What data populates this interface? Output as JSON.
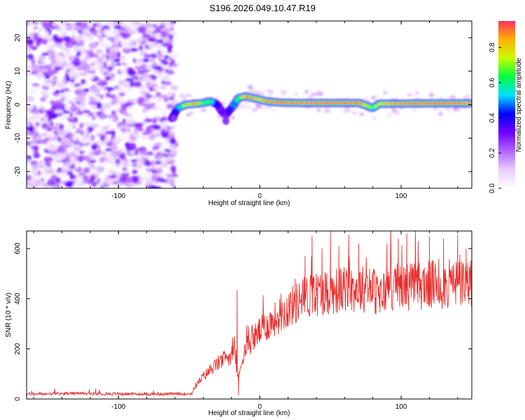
{
  "title": "S196.2026.049.10.47.R19",
  "chart_data": [
    {
      "type": "heatmap",
      "name": "spectrogram",
      "xlabel": "Height of straight line (km)",
      "ylabel": "Frequency (Hz)",
      "xlim": [
        -165,
        150
      ],
      "ylim": [
        -25,
        25
      ],
      "xticks": [
        -100,
        0,
        100
      ],
      "yticks": [
        -20,
        -10,
        0,
        10,
        20
      ],
      "noise_region_x": [
        -165,
        -60
      ],
      "ridge": {
        "x": [
          -62,
          -58,
          -52,
          -45,
          -40,
          -35,
          -30,
          -27,
          -24,
          -20,
          -15,
          -10,
          -5,
          0,
          5,
          15,
          30,
          50,
          70,
          80,
          85,
          100,
          120,
          140,
          148
        ],
        "freq": [
          -4,
          -1,
          0,
          0.3,
          0.5,
          1,
          0,
          -2,
          -3,
          -1,
          2,
          2.5,
          2,
          1.5,
          1,
          0.6,
          0.5,
          0.5,
          0.5,
          -1,
          0.3,
          0.3,
          0.4,
          0.4,
          0.4
        ],
        "amplitude": [
          0.3,
          0.45,
          0.75,
          0.85,
          0.6,
          0.6,
          0.35,
          0.3,
          0.3,
          0.4,
          0.6,
          0.9,
          0.85,
          0.75,
          0.9,
          0.95,
          0.9,
          0.95,
          0.9,
          0.6,
          0.75,
          0.9,
          0.95,
          0.9,
          0.85
        ]
      }
    },
    {
      "type": "colorbar",
      "name": "amplitude-colorbar",
      "label": "Normalized spectral amplitude",
      "range": [
        0,
        0.95
      ],
      "ticks": [
        0.0,
        0.2,
        0.4,
        0.6,
        0.8
      ],
      "tick_labels": [
        "0.0",
        "0.2",
        "0.4",
        "0.6",
        "0.8"
      ],
      "colors": [
        "#ffffff",
        "#e8ccff",
        "#b266ff",
        "#7000ff",
        "#0000ff",
        "#00e0ff",
        "#00ff40",
        "#c8ff00",
        "#ffb000",
        "#ff3060"
      ]
    },
    {
      "type": "line",
      "name": "snr-plot",
      "xlabel": "Height of straight line (km)",
      "ylabel": "SNR (10 * v/v)",
      "xlim": [
        -165,
        150
      ],
      "ylim": [
        0,
        670
      ],
      "xticks": [
        -100,
        0,
        100
      ],
      "yticks": [
        0,
        200,
        400,
        600
      ],
      "color": "#e8302e",
      "series": [
        {
          "name": "SNR",
          "x": [
            -165,
            -150,
            -130,
            -110,
            -90,
            -70,
            -55,
            -48,
            -46,
            -40,
            -35,
            -30,
            -25,
            -20,
            -18,
            -16,
            -15,
            -12,
            -8,
            -4,
            0,
            10,
            20,
            30,
            40,
            50,
            60,
            70,
            80,
            85,
            90,
            100,
            110,
            120,
            130,
            140,
            150
          ],
          "y": [
            20,
            20,
            22,
            21,
            20,
            20,
            20,
            22,
            50,
            90,
            115,
            140,
            160,
            175,
            190,
            110,
            80,
            175,
            220,
            245,
            270,
            315,
            360,
            400,
            420,
            430,
            435,
            440,
            440,
            400,
            445,
            450,
            450,
            455,
            455,
            460,
            460
          ]
        }
      ],
      "spikes": [
        {
          "x": -16,
          "y": 435
        },
        {
          "x": -15,
          "y": 15
        },
        {
          "x": 5,
          "y": 320
        },
        {
          "x": 15,
          "y": 420
        },
        {
          "x": 25,
          "y": 480
        },
        {
          "x": 32,
          "y": 570
        },
        {
          "x": 37,
          "y": 650
        },
        {
          "x": 44,
          "y": 600
        },
        {
          "x": 50,
          "y": 670
        },
        {
          "x": 56,
          "y": 610
        },
        {
          "x": 63,
          "y": 655
        },
        {
          "x": 70,
          "y": 620
        },
        {
          "x": 85,
          "y": 345
        },
        {
          "x": 90,
          "y": 620
        },
        {
          "x": 98,
          "y": 640
        },
        {
          "x": 104,
          "y": 660
        },
        {
          "x": 112,
          "y": 630
        },
        {
          "x": 120,
          "y": 650
        },
        {
          "x": 130,
          "y": 640
        },
        {
          "x": 140,
          "y": 655
        },
        {
          "x": 146,
          "y": 600
        }
      ]
    }
  ]
}
